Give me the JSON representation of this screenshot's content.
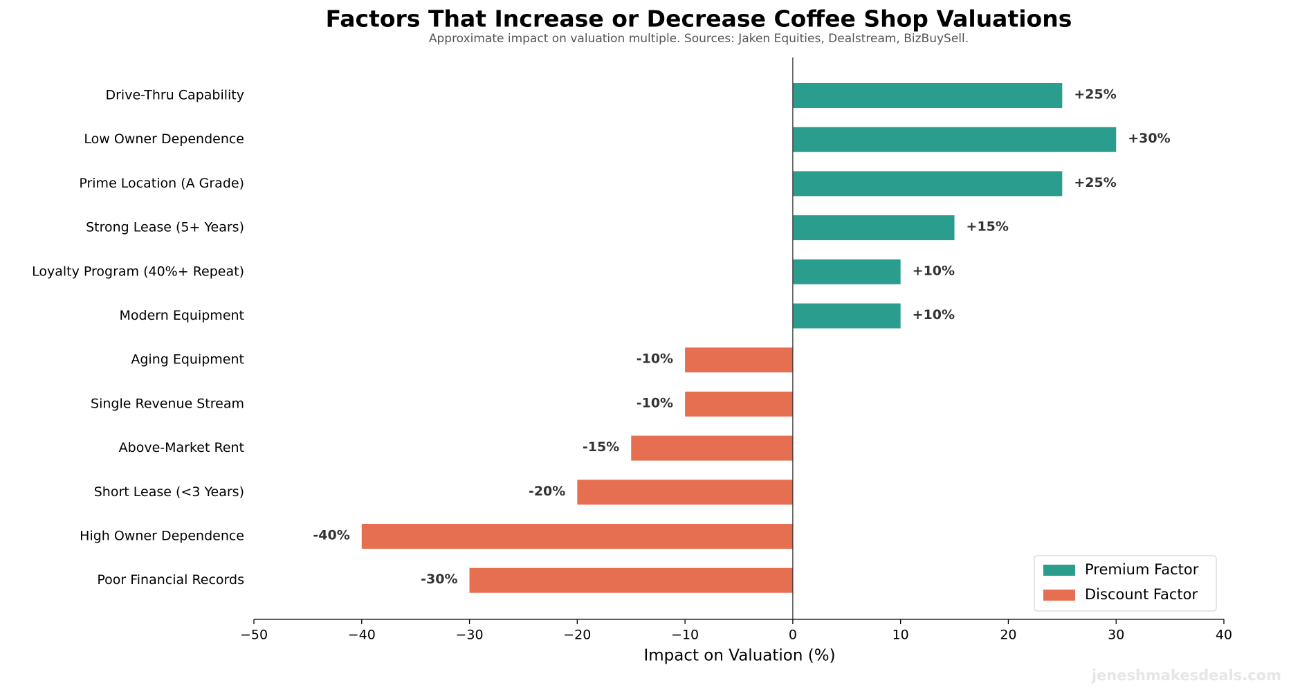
{
  "chart_data": {
    "type": "hbar",
    "title": "Factors That Increase or Decrease Coffee Shop Valuations",
    "subtitle": "Approximate impact on valuation multiple. Sources: Jaken Equities, Dealstream, BizBuySell.",
    "xlabel": "Impact on Valuation (%)",
    "watermark": "jeneshmakesdeals.com",
    "categories": [
      "Drive-Thru Capability",
      "Low Owner Dependence",
      "Prime Location (A Grade)",
      "Strong Lease (5+ Years)",
      "Loyalty Program (40%+ Repeat)",
      "Modern Equipment",
      "Aging Equipment",
      "Single Revenue Stream",
      "Above-Market Rent",
      "Short Lease (<3 Years)",
      "High Owner Dependence",
      "Poor Financial Records"
    ],
    "series": [
      {
        "name": "Premium Factor",
        "color": "#2a9d8f",
        "values": [
          25,
          30,
          25,
          15,
          10,
          10,
          null,
          null,
          null,
          null,
          null,
          null
        ],
        "value_labels": [
          "+25%",
          "+30%",
          "+25%",
          "+15%",
          "+10%",
          "+10%",
          null,
          null,
          null,
          null,
          null,
          null
        ]
      },
      {
        "name": "Discount Factor",
        "color": "#e76f51",
        "values": [
          null,
          null,
          null,
          null,
          null,
          null,
          -10,
          -10,
          -15,
          -20,
          -40,
          -30
        ],
        "value_labels": [
          null,
          null,
          null,
          null,
          null,
          null,
          "-10%",
          "-10%",
          "-15%",
          "-20%",
          "-40%",
          "-30%"
        ]
      }
    ],
    "xlim": [
      -50,
      40
    ],
    "xticks": [
      {
        "value": -50,
        "label": "−50"
      },
      {
        "value": -40,
        "label": "−40"
      },
      {
        "value": -30,
        "label": "−30"
      },
      {
        "value": -20,
        "label": "−20"
      },
      {
        "value": -10,
        "label": "−10"
      },
      0,
      10,
      20,
      30,
      40
    ],
    "legend": "lower right"
  }
}
